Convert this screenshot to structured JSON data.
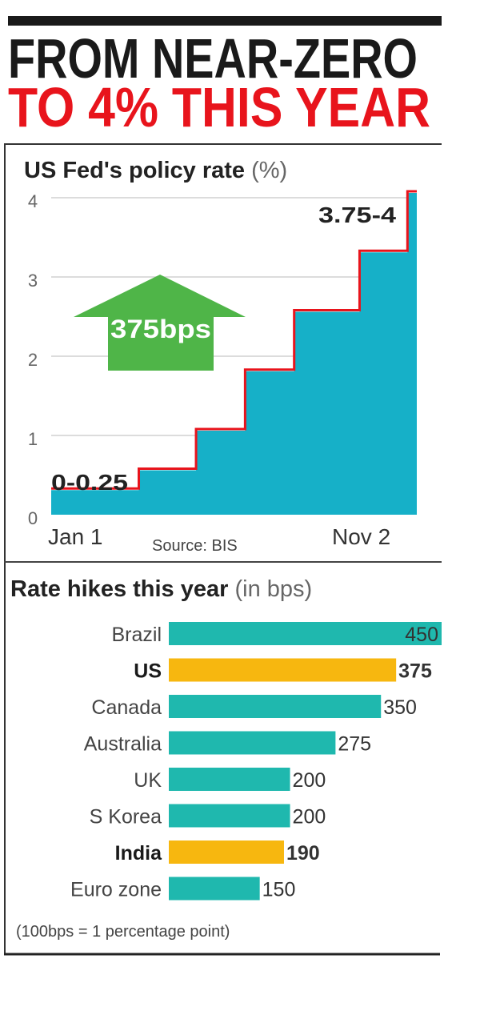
{
  "headline": {
    "line1": "FROM NEAR-ZERO",
    "line2": "TO 4% THIS YEAR",
    "line1_color": "#1a1a1a",
    "line2_color": "#e8141c"
  },
  "chart_data": [
    {
      "type": "area",
      "title": "US Fed's policy rate",
      "title_unit": "(%)",
      "step": true,
      "x": [
        "2022-01-01",
        "2022-03-17",
        "2022-05-05",
        "2022-06-16",
        "2022-07-28",
        "2022-09-22",
        "2022-11-02"
      ],
      "values": [
        0.25,
        0.5,
        1.0,
        1.75,
        2.5,
        3.25,
        4.0
      ],
      "xlim": [
        "2022-01-01",
        "2022-11-10"
      ],
      "ylim": [
        0,
        4
      ],
      "yticks": [
        "0",
        "1",
        "2",
        "3",
        "4"
      ],
      "xtick_labels": [
        "Jan 1",
        "Nov 2"
      ],
      "grid": true,
      "annotations": {
        "start": "0-0.25",
        "end": "3.75-4",
        "arrow": "375bps"
      },
      "source": "Source: BIS",
      "colors": {
        "fill": "#16b0c8",
        "line": "#e8141c",
        "arrow": "#4fb548",
        "grid": "#d0d0d0"
      }
    },
    {
      "type": "bar",
      "orientation": "horizontal",
      "title": "Rate hikes this year",
      "title_unit": "(in bps)",
      "categories": [
        "Brazil",
        "US",
        "Canada",
        "Australia",
        "UK",
        "S Korea",
        "India",
        "Euro zone"
      ],
      "values": [
        450,
        375,
        350,
        275,
        200,
        200,
        190,
        150
      ],
      "highlighted": [
        "US",
        "India"
      ],
      "footnote": "(100bps = 1 percentage point)",
      "colors": {
        "default": "#1fb8ae",
        "highlight": "#f7b70f"
      }
    }
  ]
}
